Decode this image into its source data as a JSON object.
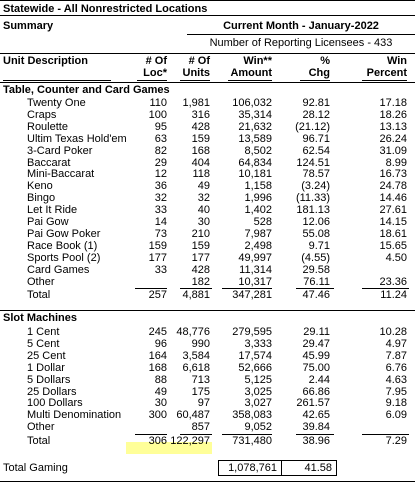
{
  "header": {
    "title": "Statewide - All Nonrestricted Locations",
    "summary": "Summary",
    "month": "Current Month - January-2022",
    "licensees": "Number of Reporting Licensees - 433"
  },
  "columns": {
    "desc": "Unit Description",
    "loc1": "# Of",
    "loc2": "Loc*",
    "units1": "# Of",
    "units2": "Units",
    "win1": "Win**",
    "win2": "Amount",
    "chg1": "%",
    "chg2": "Chg",
    "pct1": "Win",
    "pct2": "Percent"
  },
  "tables": {
    "title": "Table, Counter and Card Games",
    "rows": [
      {
        "desc": "Twenty One",
        "loc": "110",
        "units": "1,981",
        "win": "106,032",
        "chg": "92.81",
        "pct": "17.18"
      },
      {
        "desc": "Craps",
        "loc": "100",
        "units": "316",
        "win": "35,314",
        "chg": "28.12",
        "pct": "18.26"
      },
      {
        "desc": "Roulette",
        "loc": "95",
        "units": "428",
        "win": "21,632",
        "chg": "(21.12)",
        "pct": "13.13"
      },
      {
        "desc": "Ultim Texas Hold'em",
        "loc": "63",
        "units": "159",
        "win": "13,589",
        "chg": "96.71",
        "pct": "26.24"
      },
      {
        "desc": "3-Card Poker",
        "loc": "82",
        "units": "168",
        "win": "8,502",
        "chg": "62.54",
        "pct": "31.09"
      },
      {
        "desc": "Baccarat",
        "loc": "29",
        "units": "404",
        "win": "64,834",
        "chg": "124.51",
        "pct": "8.99"
      },
      {
        "desc": "Mini-Baccarat",
        "loc": "12",
        "units": "118",
        "win": "10,181",
        "chg": "78.57",
        "pct": "16.73"
      },
      {
        "desc": "Keno",
        "loc": "36",
        "units": "49",
        "win": "1,158",
        "chg": "(3.24)",
        "pct": "24.78"
      },
      {
        "desc": "Bingo",
        "loc": "32",
        "units": "32",
        "win": "1,996",
        "chg": "(11.33)",
        "pct": "14.46"
      },
      {
        "desc": "Let It Ride",
        "loc": "33",
        "units": "40",
        "win": "1,402",
        "chg": "181.13",
        "pct": "27.61"
      },
      {
        "desc": "Pai Gow",
        "loc": "14",
        "units": "30",
        "win": "528",
        "chg": "12.06",
        "pct": "14.15"
      },
      {
        "desc": "Pai Gow Poker",
        "loc": "73",
        "units": "210",
        "win": "7,987",
        "chg": "55.08",
        "pct": "18.61"
      },
      {
        "desc": "Race Book (1)",
        "loc": "159",
        "units": "159",
        "win": "2,498",
        "chg": "9.71",
        "pct": "15.65"
      },
      {
        "desc": "Sports Pool (2)",
        "loc": "177",
        "units": "177",
        "win": "49,997",
        "chg": "(4.55)",
        "pct": "4.50"
      },
      {
        "desc": "Card Games",
        "loc": "33",
        "units": "428",
        "win": "11,314",
        "chg": "29.58",
        "pct": ""
      },
      {
        "desc": "Other",
        "loc": "",
        "units": "182",
        "win": "10,317",
        "chg": "76.11",
        "pct": "23.36"
      }
    ],
    "total": {
      "desc": "Total",
      "loc": "257",
      "units": "4,881",
      "win": "347,281",
      "chg": "47.46",
      "pct": "11.24"
    }
  },
  "slots": {
    "title": "Slot Machines",
    "rows": [
      {
        "desc": "1 Cent",
        "loc": "245",
        "units": "48,776",
        "win": "279,595",
        "chg": "29.11",
        "pct": "10.28"
      },
      {
        "desc": "5 Cent",
        "loc": "96",
        "units": "990",
        "win": "3,333",
        "chg": "29.47",
        "pct": "4.97"
      },
      {
        "desc": "25 Cent",
        "loc": "164",
        "units": "3,584",
        "win": "17,574",
        "chg": "45.99",
        "pct": "7.87"
      },
      {
        "desc": "1 Dollar",
        "loc": "168",
        "units": "6,618",
        "win": "52,666",
        "chg": "75.00",
        "pct": "6.76"
      },
      {
        "desc": "5 Dollars",
        "loc": "88",
        "units": "713",
        "win": "5,125",
        "chg": "2.44",
        "pct": "4.63"
      },
      {
        "desc": "25 Dollars",
        "loc": "49",
        "units": "175",
        "win": "3,025",
        "chg": "66.86",
        "pct": "7.95"
      },
      {
        "desc": "100 Dollars",
        "loc": "30",
        "units": "97",
        "win": "3,027",
        "chg": "261.57",
        "pct": "9.18"
      },
      {
        "desc": "Multi Denomination",
        "loc": "300",
        "units": "60,487",
        "win": "358,083",
        "chg": "42.65",
        "pct": "6.09"
      },
      {
        "desc": "Other",
        "loc": "",
        "units": "857",
        "win": "9,052",
        "chg": "39.84",
        "pct": ""
      }
    ],
    "total": {
      "desc": "Total",
      "loc": "306",
      "units": "122,297",
      "win": "731,480",
      "chg": "38.96",
      "pct": "7.29"
    }
  },
  "total_gaming": {
    "label": "Total Gaming",
    "win": "1,078,761",
    "chg": "41.58"
  },
  "colors": {
    "highlight": "#ffff99"
  }
}
